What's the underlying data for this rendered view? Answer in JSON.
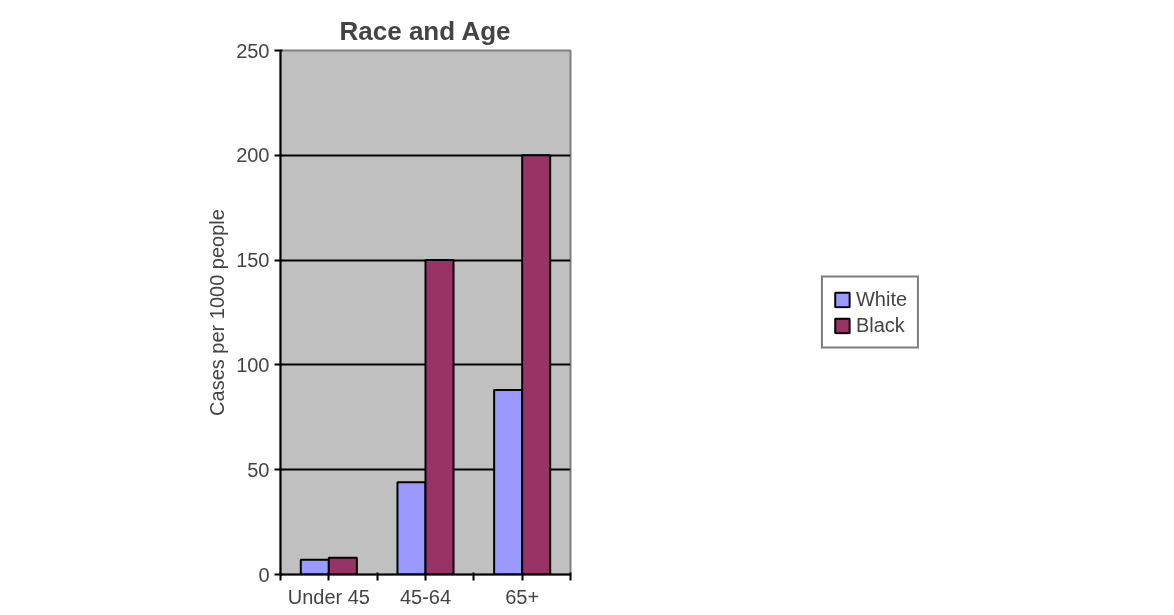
{
  "chart_data": {
    "type": "bar",
    "title": "Race and Age",
    "ylabel": "Cases per 1000 people",
    "categories": [
      "Under 45",
      "45-64",
      "65+"
    ],
    "series": [
      {
        "name": "White",
        "color": "#9999ff",
        "values": [
          7,
          44,
          88
        ]
      },
      {
        "name": "Black",
        "color": "#993366",
        "values": [
          8,
          150,
          200
        ]
      }
    ],
    "ylim": [
      0,
      250
    ],
    "yticks": [
      0,
      50,
      100,
      150,
      200,
      250
    ],
    "grid": "y",
    "legend": "right"
  }
}
